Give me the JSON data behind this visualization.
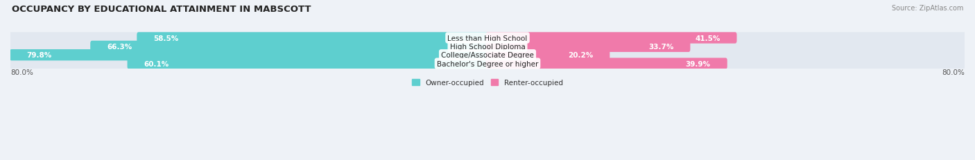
{
  "title": "OCCUPANCY BY EDUCATIONAL ATTAINMENT IN MABSCOTT",
  "source": "Source: ZipAtlas.com",
  "categories": [
    "Less than High School",
    "High School Diploma",
    "College/Associate Degree",
    "Bachelor's Degree or higher"
  ],
  "owner_values": [
    58.5,
    66.3,
    79.8,
    60.1
  ],
  "renter_values": [
    41.5,
    33.7,
    20.2,
    39.9
  ],
  "owner_color": "#5ecfcf",
  "renter_color": "#f07aaa",
  "owner_label": "Owner-occupied",
  "renter_label": "Renter-occupied",
  "xlim_left": -80.0,
  "xlim_right": 80.0,
  "x_left_label": "80.0%",
  "x_right_label": "80.0%",
  "background_color": "#eef2f7",
  "bar_background": "#e2e8f0",
  "title_fontsize": 9.5,
  "source_fontsize": 7,
  "bar_height": 0.72,
  "label_fontsize": 7.5,
  "pct_fontsize": 7.5,
  "cat_fontsize": 7.5
}
